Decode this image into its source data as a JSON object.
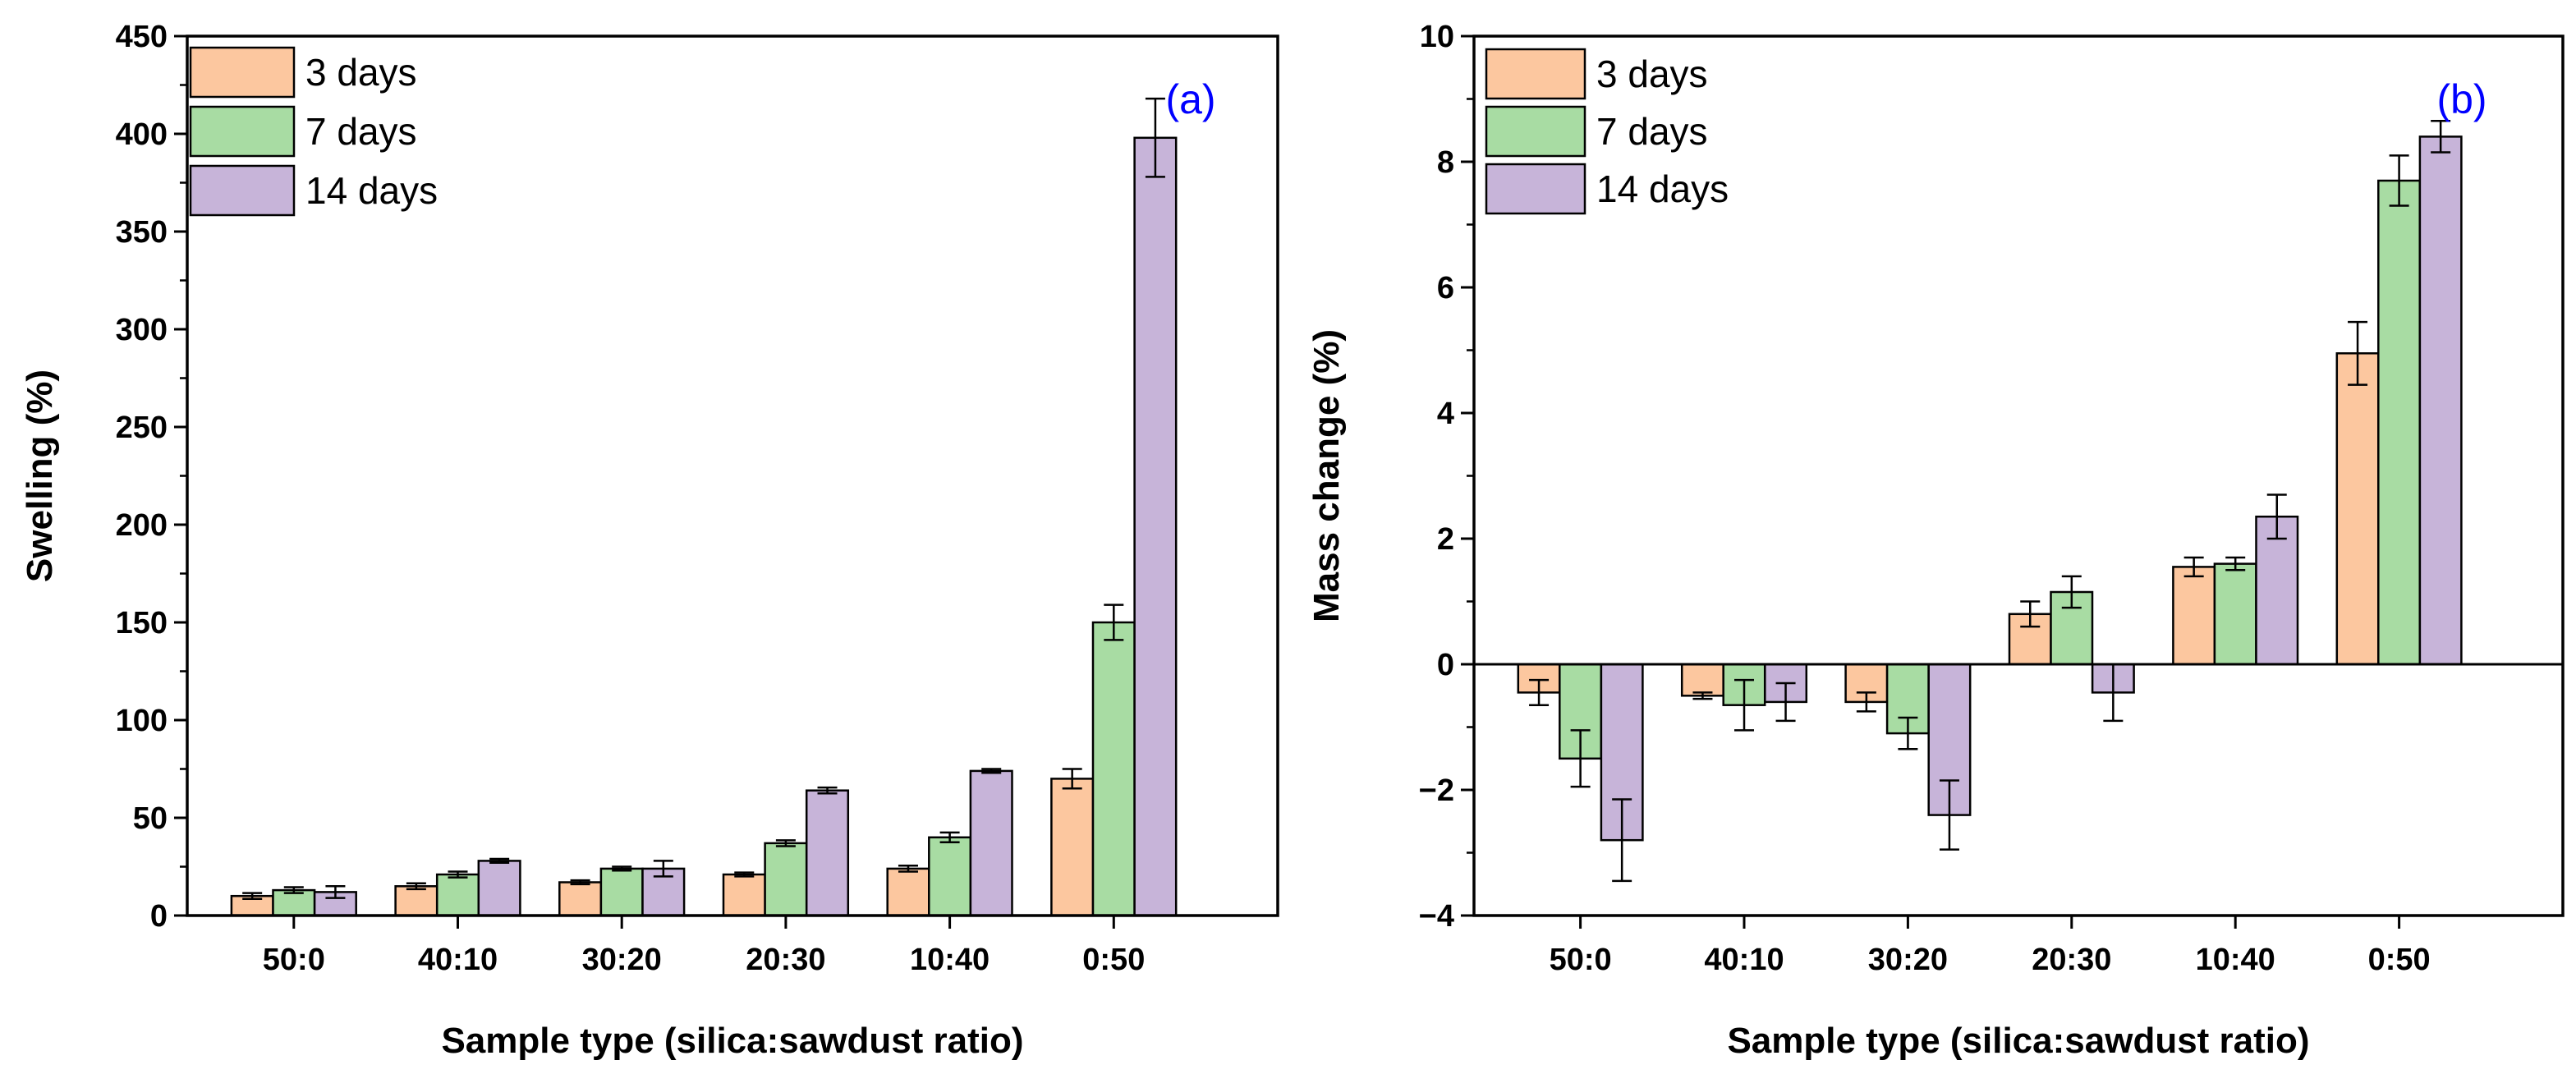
{
  "chart_data": [
    {
      "type": "bar",
      "panel_label": "(a)",
      "categories": [
        "50:0",
        "40:10",
        "30:20",
        "20:30",
        "10:40",
        "0:50"
      ],
      "series": [
        {
          "name": "3 days",
          "color": "#fcc79f",
          "values": [
            10,
            15,
            17,
            21,
            24,
            70
          ],
          "errors": [
            1.5,
            1.5,
            1,
            1,
            1.5,
            5
          ]
        },
        {
          "name": "7 days",
          "color": "#a8dca3",
          "values": [
            13,
            21,
            24,
            37,
            40,
            150
          ],
          "errors": [
            1.5,
            1.5,
            1,
            1.5,
            2.5,
            9
          ]
        },
        {
          "name": "14 days",
          "color": "#c7b4d9",
          "values": [
            12,
            28,
            24,
            64,
            74,
            398
          ],
          "errors": [
            3,
            1,
            4,
            1.5,
            1,
            20
          ]
        }
      ],
      "xlabel": "Sample type (silica:sawdust ratio)",
      "ylabel": "Swelling (%)",
      "ylim": [
        0,
        450
      ],
      "yticks": [
        0,
        50,
        100,
        150,
        200,
        250,
        300,
        350,
        400,
        450
      ],
      "legend_position": "top-left",
      "grid": false
    },
    {
      "type": "bar",
      "panel_label": "(b)",
      "categories": [
        "50:0",
        "40:10",
        "30:20",
        "20:30",
        "10:40",
        "0:50"
      ],
      "series": [
        {
          "name": "3 days",
          "color": "#fcc79f",
          "values": [
            -0.45,
            -0.5,
            -0.6,
            0.8,
            1.55,
            4.95
          ],
          "errors": [
            0.2,
            0.05,
            0.15,
            0.2,
            0.15,
            0.5
          ]
        },
        {
          "name": "7 days",
          "color": "#a8dca3",
          "values": [
            -1.5,
            -0.65,
            -1.1,
            1.15,
            1.6,
            7.7
          ],
          "errors": [
            0.45,
            0.4,
            0.25,
            0.25,
            0.1,
            0.4
          ]
        },
        {
          "name": "14 days",
          "color": "#c7b4d9",
          "values": [
            -2.8,
            -0.6,
            -2.4,
            -0.45,
            2.35,
            8.4
          ],
          "errors": [
            0.65,
            0.3,
            0.55,
            0.45,
            0.35,
            0.25
          ]
        }
      ],
      "xlabel": "Sample type (silica:sawdust ratio)",
      "ylabel": "Mass change (%)",
      "ylim": [
        -4,
        10
      ],
      "yticks": [
        -4,
        -2,
        0,
        2,
        4,
        6,
        8,
        10
      ],
      "legend_position": "top-left",
      "grid": false
    }
  ]
}
